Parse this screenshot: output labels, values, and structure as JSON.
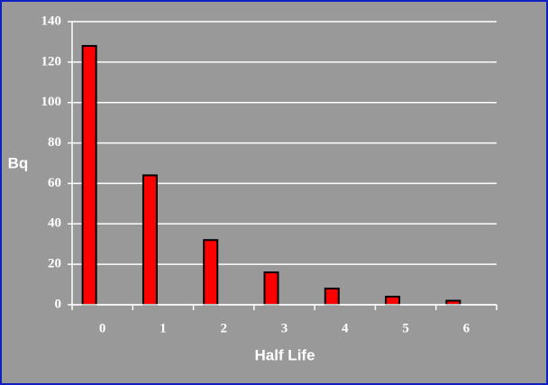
{
  "chart_data": {
    "type": "bar",
    "x_label": "Half Life",
    "y_label": "Bq",
    "categories": [
      "0",
      "1",
      "2",
      "3",
      "4",
      "5",
      "6"
    ],
    "values": [
      128,
      64,
      32,
      16,
      8,
      4,
      2
    ],
    "color": "#ff0000",
    "ylim": [
      0,
      140
    ],
    "yticks": [
      0,
      20,
      40,
      60,
      80,
      100,
      120,
      140
    ],
    "grid": true
  }
}
